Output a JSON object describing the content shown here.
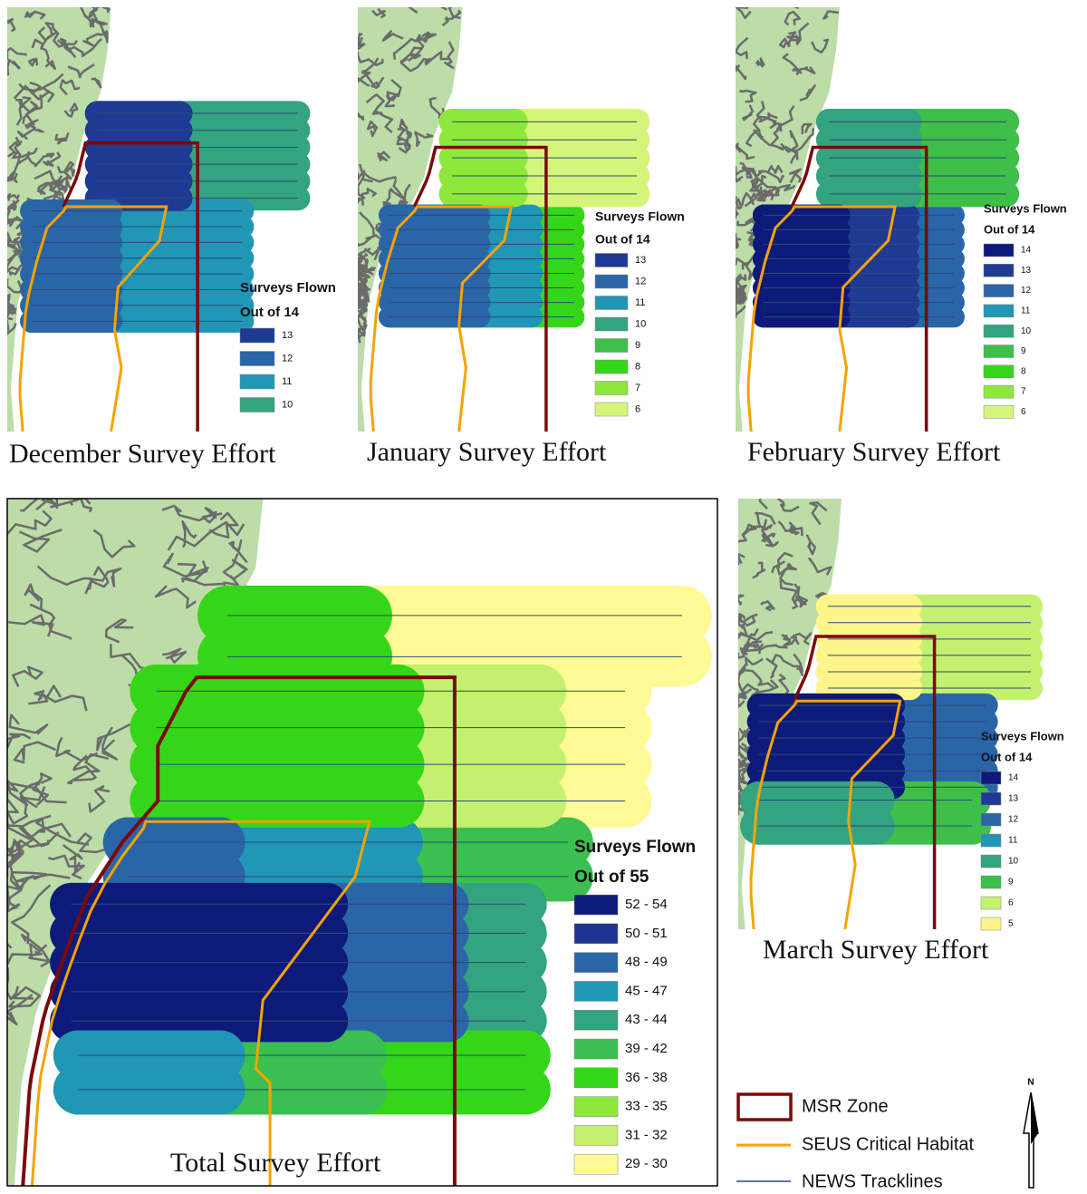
{
  "panels": [
    {
      "title": "December Survey Effort",
      "legend": {
        "title": "Surveys Flown",
        "subtitle": "Out of 14",
        "items": [
          {
            "label": "13",
            "color": "#1f3a93"
          },
          {
            "label": "12",
            "color": "#2a65a8"
          },
          {
            "label": "11",
            "color": "#2196b5"
          },
          {
            "label": "10",
            "color": "#34a37f"
          }
        ]
      }
    },
    {
      "title": "January Survey Effort",
      "legend": {
        "title": "Surveys Flown",
        "subtitle": "Out of 14",
        "items": [
          {
            "label": "13",
            "color": "#1f3a93"
          },
          {
            "label": "12",
            "color": "#2a65a8"
          },
          {
            "label": "11",
            "color": "#2196b5"
          },
          {
            "label": "10",
            "color": "#34a37f"
          },
          {
            "label": "9",
            "color": "#3ebf4a"
          },
          {
            "label": "8",
            "color": "#35d61a"
          },
          {
            "label": "7",
            "color": "#8ee83c"
          },
          {
            "label": "6",
            "color": "#d5f57a"
          }
        ]
      }
    },
    {
      "title": "February Survey Effort",
      "legend": {
        "title": "Surveys Flown",
        "subtitle": "Out of 14",
        "items": [
          {
            "label": "14",
            "color": "#0d1a7a"
          },
          {
            "label": "13",
            "color": "#1f3a93"
          },
          {
            "label": "12",
            "color": "#2a65a8"
          },
          {
            "label": "11",
            "color": "#2196b5"
          },
          {
            "label": "10",
            "color": "#34a37f"
          },
          {
            "label": "9",
            "color": "#3ebf4a"
          },
          {
            "label": "8",
            "color": "#35d61a"
          },
          {
            "label": "7",
            "color": "#8ee83c"
          },
          {
            "label": "6",
            "color": "#d5f57a"
          }
        ]
      }
    },
    {
      "title": "Total Survey Effort",
      "legend": {
        "title": "Surveys Flown",
        "subtitle": "Out of 55",
        "items": [
          {
            "label": "52 - 54",
            "color": "#0d1a7a"
          },
          {
            "label": "50 - 51",
            "color": "#1d3590"
          },
          {
            "label": "48 - 49",
            "color": "#2a65a8"
          },
          {
            "label": "45 - 47",
            "color": "#2196b5"
          },
          {
            "label": "43 - 44",
            "color": "#34a37f"
          },
          {
            "label": "39 - 42",
            "color": "#3bbf50"
          },
          {
            "label": "36 - 38",
            "color": "#35d61a"
          },
          {
            "label": "33 - 35",
            "color": "#8ee83c"
          },
          {
            "label": "31 - 32",
            "color": "#c4f070"
          },
          {
            "label": "29 - 30",
            "color": "#fffa96"
          }
        ]
      }
    },
    {
      "title": "March Survey Effort",
      "legend": {
        "title": "Surveys Flown",
        "subtitle": "Out of 14",
        "items": [
          {
            "label": "14",
            "color": "#0d1a7a"
          },
          {
            "label": "13",
            "color": "#1f3a93"
          },
          {
            "label": "12",
            "color": "#2a65a8"
          },
          {
            "label": "11",
            "color": "#2196b5"
          },
          {
            "label": "10",
            "color": "#34a37f"
          },
          {
            "label": "9",
            "color": "#3ebf4a"
          },
          {
            "label": "6",
            "color": "#c4f070"
          },
          {
            "label": "5",
            "color": "#fff58a"
          }
        ]
      }
    }
  ],
  "legend": {
    "items": [
      {
        "label": "MSR Zone",
        "color": "#7a0a0a"
      },
      {
        "label": "SEUS Critical Habitat",
        "color": "#f5a300"
      },
      {
        "label": "NEWS Tracklines",
        "color": "#2a4a78"
      }
    ]
  },
  "north": "N"
}
